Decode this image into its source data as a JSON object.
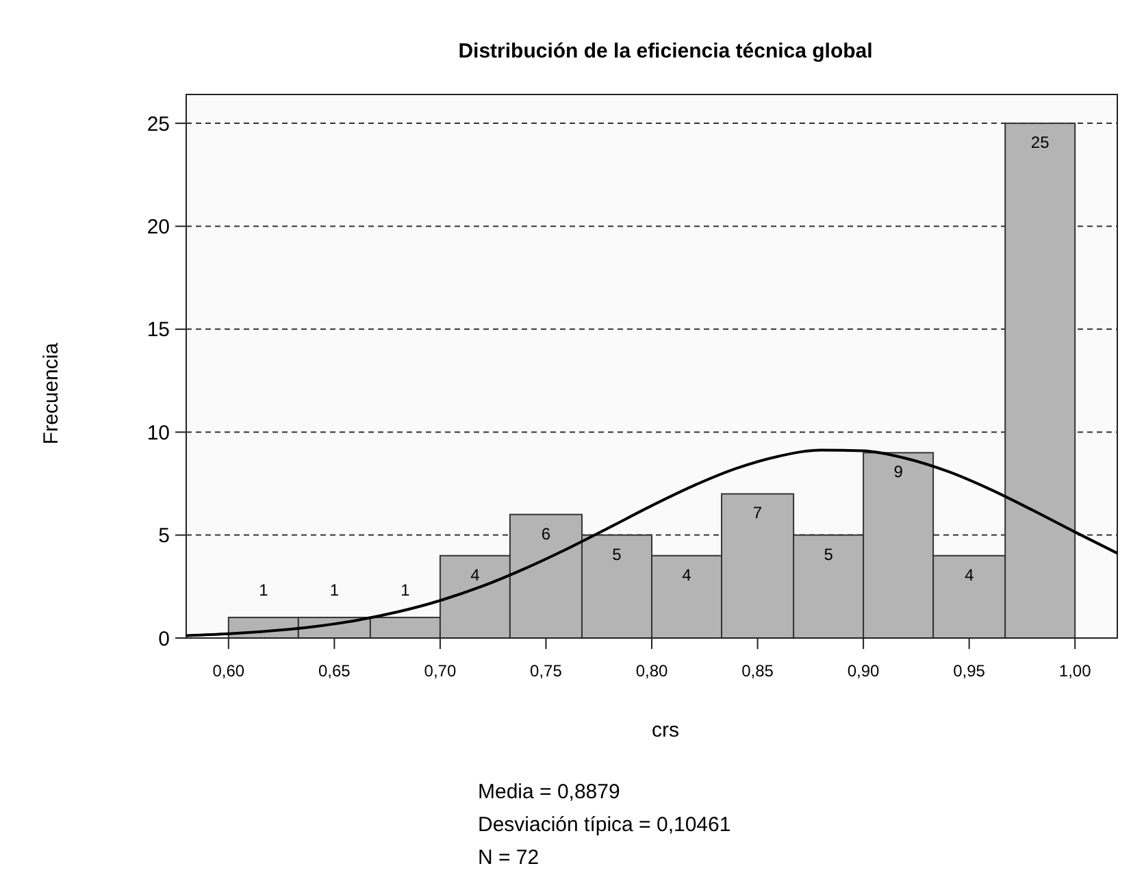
{
  "chart_data": {
    "type": "histogram",
    "title": "Distribución de la eficiencia técnica global",
    "xlabel": "crs",
    "ylabel": "Frecuencia",
    "bins": [
      0.6,
      0.633,
      0.667,
      0.7,
      0.733,
      0.767,
      0.8,
      0.833,
      0.867,
      0.9,
      0.933,
      0.967,
      1.0
    ],
    "values": [
      1,
      1,
      1,
      4,
      6,
      5,
      4,
      7,
      5,
      9,
      4,
      25
    ],
    "color": "#b4b4b4",
    "value_labels": [
      "1",
      "1",
      "1",
      "4",
      "6",
      "5",
      "4",
      "7",
      "5",
      "9",
      "4",
      "25"
    ],
    "series": [
      {
        "type": "line",
        "color": "#000000",
        "x": [
          0.58,
          0.6,
          0.62,
          0.64,
          0.66,
          0.68,
          0.7,
          0.72,
          0.74,
          0.76,
          0.78,
          0.8,
          0.82,
          0.84,
          0.86,
          0.88,
          0.9,
          0.92,
          0.94,
          0.96,
          0.98,
          1.0,
          1.02
        ],
        "values": [
          0.12,
          0.21,
          0.35,
          0.55,
          0.85,
          1.27,
          1.82,
          2.52,
          3.37,
          4.33,
          5.37,
          6.43,
          7.41,
          8.24,
          8.83,
          9.13,
          9.09,
          8.73,
          8.09,
          7.22,
          6.21,
          5.15,
          4.12
        ]
      }
    ],
    "xlim": [
      0.58,
      1.02
    ],
    "xticks": [
      {
        "value": 0.6,
        "label": "0,60"
      },
      {
        "value": 0.65,
        "label": "0,65"
      },
      {
        "value": 0.7,
        "label": "0,70"
      },
      {
        "value": 0.75,
        "label": "0,75"
      },
      {
        "value": 0.8,
        "label": "0,80"
      },
      {
        "value": 0.85,
        "label": "0,85"
      },
      {
        "value": 0.9,
        "label": "0,90"
      },
      {
        "value": 0.95,
        "label": "0,95"
      },
      {
        "value": 1.0,
        "label": "1,00"
      }
    ],
    "ylim": [
      0,
      26.4
    ],
    "yticks": [
      0,
      5,
      10,
      15,
      20,
      25
    ],
    "grid": "y",
    "annotations": [
      "Media = 0,8879",
      "Desviación típica = 0,10461",
      "N = 72"
    ]
  }
}
